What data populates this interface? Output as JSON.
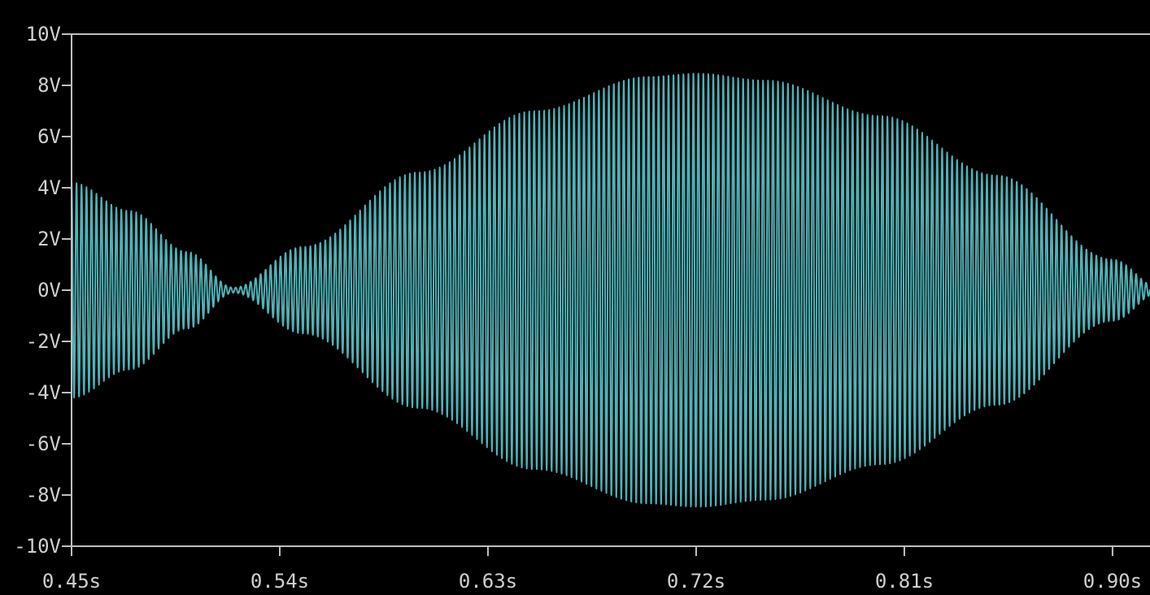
{
  "chart_data": {
    "type": "line",
    "title": "",
    "xlabel": "",
    "ylabel": "",
    "xlim": [
      0.45,
      0.9162
    ],
    "ylim": [
      -10,
      10
    ],
    "grid": false,
    "legend": "none",
    "x_ticks": [
      0.45,
      0.54,
      0.63,
      0.72,
      0.81,
      0.9
    ],
    "x_tick_labels": [
      "0.45s",
      "0.54s",
      "0.63s",
      "0.72s",
      "0.81s",
      "0.90s"
    ],
    "y_ticks": [
      10,
      8,
      6,
      4,
      2,
      0,
      -2,
      -4,
      -6,
      -8,
      -10
    ],
    "y_tick_labels": [
      "10V",
      "8V",
      "6V",
      "4V",
      "2V",
      "0V",
      "-2V",
      "-4V",
      "-6V",
      "-8V",
      "-10V"
    ],
    "colors": {
      "background": "#000000",
      "axis": "#bfbfbf",
      "trace": "#4fb3b8",
      "text": "#d0d0d0"
    },
    "series": [
      {
        "signal": "beat (amplitude-modulated sine)",
        "envelope_peak_V": 8.5,
        "envelope_peak_time_s": 0.72,
        "envelope_null_times_s": [
          0.52,
          0.92
        ],
        "carrier_cycles_per_second": 465,
        "x": [
          0.45,
          0.475,
          0.5,
          0.52,
          0.55,
          0.6,
          0.65,
          0.7,
          0.72,
          0.75,
          0.8,
          0.85,
          0.9,
          0.92
        ],
        "envelope": [
          4.2,
          3.1,
          1.5,
          0.1,
          1.7,
          4.6,
          7.0,
          8.4,
          8.5,
          8.2,
          6.8,
          4.5,
          1.2,
          0.1
        ]
      }
    ]
  }
}
